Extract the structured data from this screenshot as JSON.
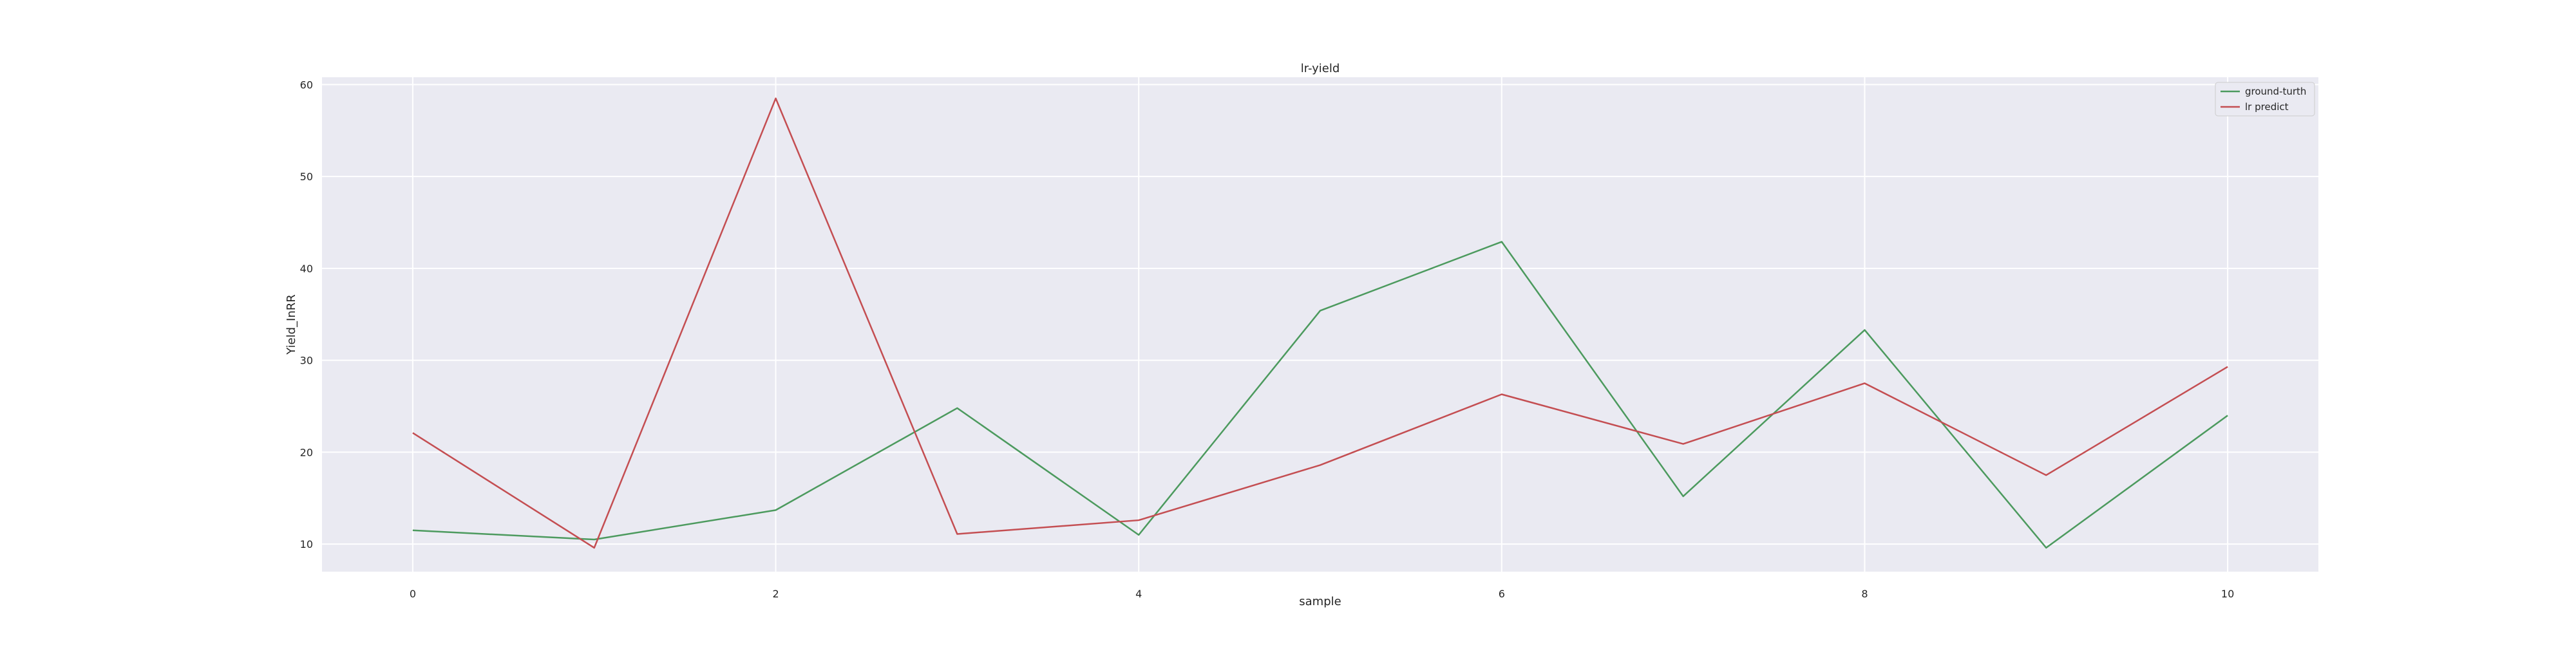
{
  "chart_data": {
    "type": "line",
    "title": "lr-yield",
    "xlabel": "sample",
    "ylabel": "Yield_InRR",
    "x": [
      0,
      1,
      2,
      3,
      4,
      5,
      6,
      7,
      8,
      9,
      10
    ],
    "xlim": [
      -0.5,
      10.5
    ],
    "ylim": [
      7,
      60.8
    ],
    "xticks": [
      0,
      2,
      4,
      6,
      8,
      10
    ],
    "yticks": [
      10,
      20,
      30,
      40,
      50,
      60
    ],
    "grid": true,
    "legend_position": "top-right",
    "series": [
      {
        "name": "ground-turth",
        "color": "#4c9a5e",
        "values": [
          11.5,
          10.5,
          13.7,
          24.8,
          11.0,
          35.4,
          42.9,
          15.2,
          33.3,
          9.6,
          24.0
        ]
      },
      {
        "name": "lr predict",
        "color": "#c44e52",
        "values": [
          22.1,
          9.6,
          58.5,
          11.1,
          12.6,
          18.6,
          26.3,
          20.9,
          27.5,
          17.5,
          29.3
        ]
      }
    ],
    "colors": {
      "plot_background": "#eaeaf2",
      "grid": "#ffffff"
    }
  }
}
